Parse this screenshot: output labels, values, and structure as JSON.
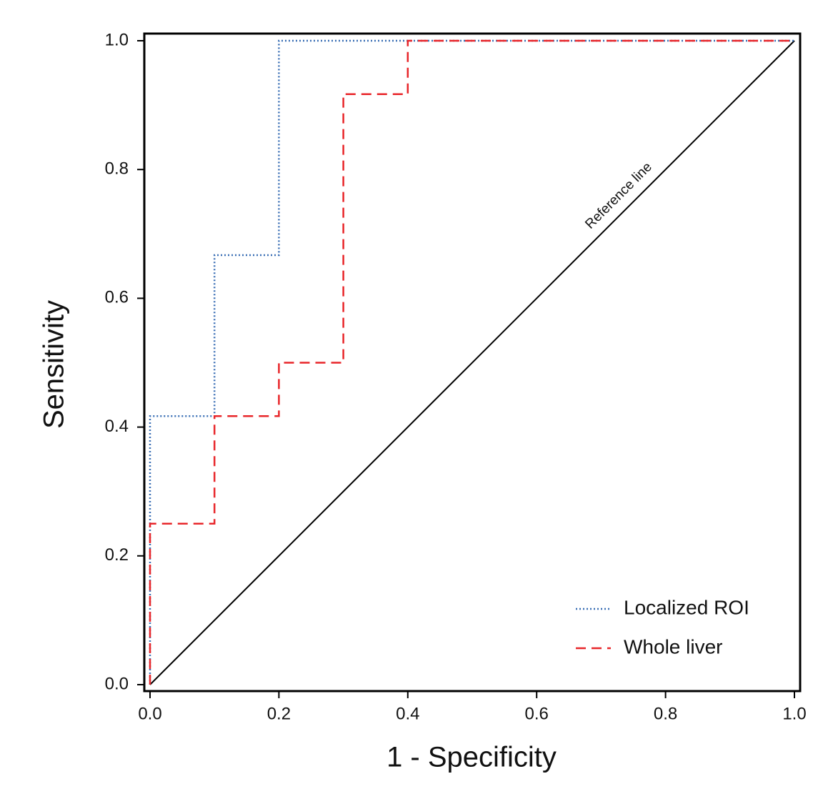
{
  "chart_data": {
    "type": "line",
    "x_label": "1 - Specificity",
    "y_label": "Sensitivity",
    "xlim": [
      0,
      1
    ],
    "ylim": [
      0,
      1
    ],
    "xticks": [
      {
        "value": 0,
        "label": "0.0"
      },
      0.2,
      0.4,
      0.6,
      0.8,
      {
        "value": 1,
        "label": "1.0"
      }
    ],
    "yticks": [
      {
        "value": 0,
        "label": "0.0"
      },
      0.2,
      0.4,
      0.6,
      0.8,
      {
        "value": 1,
        "label": "1.0"
      }
    ],
    "legend": "lower right",
    "series": [
      {
        "name": "Localized ROI",
        "color": "#3a6fb5",
        "style": "dotted",
        "x": [
          0,
          0,
          0.1,
          0.1,
          0.2,
          0.2,
          1
        ],
        "values": [
          0,
          0.417,
          0.417,
          0.667,
          0.667,
          1,
          1
        ]
      },
      {
        "name": "Whole liver",
        "color": "#e8262a",
        "style": "dashed",
        "x": [
          0,
          0,
          0.1,
          0.1,
          0.2,
          0.2,
          0.3,
          0.3,
          0.4,
          0.4,
          1
        ],
        "values": [
          0,
          0.25,
          0.25,
          0.417,
          0.417,
          0.5,
          0.5,
          0.917,
          0.917,
          1,
          1
        ]
      }
    ],
    "reference_line": {
      "label": "Reference line",
      "color": "#000000",
      "x": [
        0,
        1
      ],
      "values": [
        0,
        1
      ]
    }
  }
}
